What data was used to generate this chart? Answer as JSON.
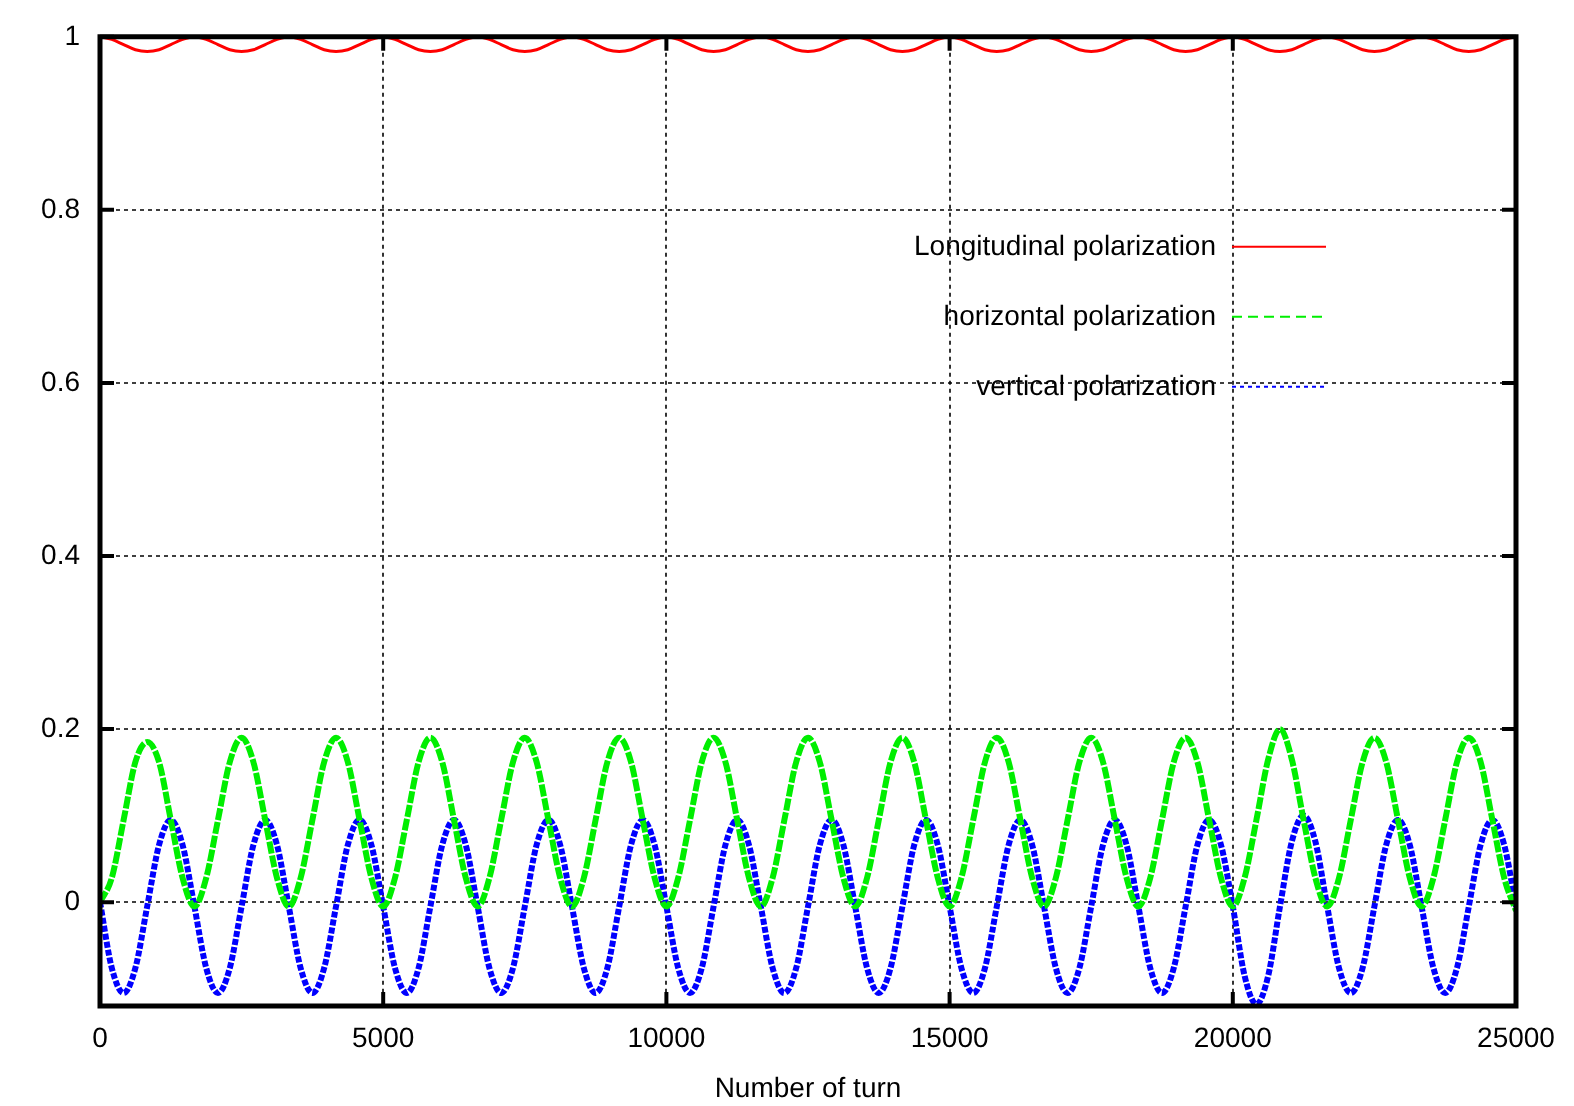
{
  "chart_data": {
    "type": "line",
    "xlabel": "Number of turn",
    "xlim": [
      0,
      25000
    ],
    "xticks": [
      0,
      5000,
      10000,
      15000,
      20000,
      25000
    ],
    "ylim": [
      -0.12,
      1
    ],
    "yticks": [
      0,
      0.2,
      0.4,
      0.6,
      0.8,
      1
    ],
    "grid": true,
    "legend": "top right",
    "marker": "none",
    "x": [
      0,
      208,
      417,
      625,
      833,
      1042,
      1250,
      1458,
      1667,
      1875,
      2083,
      2292,
      2500,
      2708,
      2917,
      3125,
      3333,
      3542,
      3750,
      3958,
      4167,
      4375,
      4583,
      4792,
      5000,
      5208,
      5417,
      5625,
      5833,
      6042,
      6250,
      6458,
      6667,
      6875,
      7083,
      7292,
      7500,
      7708,
      7917,
      8125,
      8333,
      8542,
      8750,
      8958,
      9167,
      9375,
      9583,
      9792,
      10000,
      10208,
      10417,
      10625,
      10833,
      11042,
      11250,
      11458,
      11667,
      11875,
      12083,
      12292,
      12500,
      12708,
      12917,
      13125,
      13333,
      13542,
      13750,
      13958,
      14167,
      14375,
      14583,
      14792,
      15000,
      15208,
      15417,
      15625,
      15833,
      16042,
      16250,
      16458,
      16667,
      16875,
      17083,
      17292,
      17500,
      17708,
      17917,
      18125,
      18333,
      18542,
      18750,
      18958,
      19167,
      19375,
      19583,
      19792,
      20000,
      20208,
      20417,
      20625,
      20833,
      21042,
      21250,
      21458,
      21667,
      21875,
      22083,
      22292,
      22500,
      22708,
      22917,
      23125,
      23333,
      23542,
      23750,
      23958,
      24167,
      24375,
      24583,
      24792,
      25000
    ],
    "series": [
      {
        "name": "Longitudinal polarization",
        "color": "#ff0000",
        "line_style": "solid",
        "values": [
          1,
          0.997,
          0.991,
          0.985,
          0.983,
          0.985,
          0.991,
          0.997,
          1,
          0.997,
          0.991,
          0.985,
          0.983,
          0.985,
          0.991,
          0.997,
          1,
          0.997,
          0.991,
          0.985,
          0.983,
          0.985,
          0.991,
          0.997,
          1,
          0.997,
          0.991,
          0.985,
          0.983,
          0.985,
          0.991,
          0.997,
          1,
          0.997,
          0.991,
          0.985,
          0.983,
          0.985,
          0.991,
          0.997,
          1,
          0.997,
          0.991,
          0.985,
          0.983,
          0.985,
          0.991,
          0.997,
          1,
          0.997,
          0.991,
          0.985,
          0.983,
          0.985,
          0.991,
          0.997,
          1,
          0.997,
          0.991,
          0.985,
          0.983,
          0.985,
          0.991,
          0.997,
          1,
          0.997,
          0.991,
          0.985,
          0.983,
          0.985,
          0.991,
          0.997,
          1,
          0.997,
          0.991,
          0.985,
          0.983,
          0.985,
          0.991,
          0.997,
          1,
          0.997,
          0.991,
          0.985,
          0.983,
          0.985,
          0.991,
          0.997,
          1,
          0.997,
          0.991,
          0.985,
          0.983,
          0.985,
          0.991,
          0.997,
          1,
          0.997,
          0.991,
          0.985,
          0.983,
          0.985,
          0.991,
          0.997,
          1,
          0.997,
          0.991,
          0.985,
          0.983,
          0.985,
          0.991,
          0.997,
          1,
          0.997,
          0.991,
          0.985,
          0.983,
          0.985,
          0.991,
          0.997,
          1
        ]
      },
      {
        "name": "horizontal polarization",
        "color": "#00ee00",
        "line_style": "dashed",
        "values": [
          0,
          0.028,
          0.095,
          0.162,
          0.185,
          0.162,
          0.095,
          0.028,
          -0.005,
          0.028,
          0.095,
          0.162,
          0.19,
          0.162,
          0.095,
          0.028,
          -0.005,
          0.028,
          0.095,
          0.162,
          0.19,
          0.162,
          0.095,
          0.028,
          -0.005,
          0.028,
          0.095,
          0.162,
          0.19,
          0.162,
          0.095,
          0.028,
          -0.005,
          0.028,
          0.095,
          0.162,
          0.19,
          0.162,
          0.095,
          0.028,
          -0.005,
          0.028,
          0.095,
          0.162,
          0.19,
          0.162,
          0.095,
          0.028,
          -0.005,
          0.028,
          0.095,
          0.162,
          0.19,
          0.162,
          0.095,
          0.028,
          -0.005,
          0.028,
          0.095,
          0.162,
          0.19,
          0.162,
          0.095,
          0.028,
          -0.005,
          0.028,
          0.095,
          0.162,
          0.19,
          0.162,
          0.095,
          0.028,
          -0.005,
          0.028,
          0.095,
          0.162,
          0.19,
          0.162,
          0.095,
          0.028,
          -0.005,
          0.028,
          0.095,
          0.162,
          0.19,
          0.162,
          0.095,
          0.028,
          -0.005,
          0.028,
          0.095,
          0.162,
          0.19,
          0.162,
          0.095,
          0.028,
          -0.005,
          0.028,
          0.095,
          0.165,
          0.2,
          0.165,
          0.095,
          0.028,
          -0.005,
          0.028,
          0.095,
          0.162,
          0.19,
          0.162,
          0.095,
          0.028,
          -0.005,
          0.028,
          0.095,
          0.162,
          0.19,
          0.162,
          0.095,
          0.028,
          -0.01
        ]
      },
      {
        "name": "vertical polarization",
        "color": "#0000ff",
        "line_style": "dotted",
        "values": [
          0,
          -0.076,
          -0.105,
          -0.076,
          -0.005,
          0.066,
          0.095,
          0.066,
          -0.005,
          -0.076,
          -0.105,
          -0.076,
          -0.005,
          0.066,
          0.095,
          0.066,
          -0.005,
          -0.076,
          -0.105,
          -0.076,
          -0.005,
          0.066,
          0.095,
          0.066,
          -0.005,
          -0.076,
          -0.105,
          -0.076,
          -0.005,
          0.066,
          0.095,
          0.066,
          -0.005,
          -0.076,
          -0.105,
          -0.076,
          -0.005,
          0.066,
          0.095,
          0.066,
          -0.005,
          -0.076,
          -0.105,
          -0.076,
          -0.005,
          0.066,
          0.095,
          0.066,
          -0.005,
          -0.076,
          -0.105,
          -0.076,
          -0.005,
          0.066,
          0.095,
          0.066,
          -0.005,
          -0.076,
          -0.105,
          -0.076,
          -0.005,
          0.066,
          0.095,
          0.066,
          -0.005,
          -0.076,
          -0.105,
          -0.076,
          -0.005,
          0.066,
          0.095,
          0.066,
          -0.005,
          -0.076,
          -0.105,
          -0.076,
          -0.005,
          0.066,
          0.095,
          0.066,
          -0.005,
          -0.076,
          -0.105,
          -0.076,
          -0.005,
          0.066,
          0.095,
          0.066,
          -0.005,
          -0.076,
          -0.105,
          -0.076,
          -0.005,
          0.066,
          0.095,
          0.066,
          -0.005,
          -0.085,
          -0.118,
          -0.085,
          -0.005,
          0.07,
          0.1,
          0.07,
          -0.005,
          -0.076,
          -0.105,
          -0.076,
          -0.005,
          0.066,
          0.095,
          0.066,
          -0.005,
          -0.076,
          -0.105,
          -0.076,
          -0.005,
          0.066,
          0.095,
          0.066,
          -0.005
        ]
      }
    ]
  }
}
